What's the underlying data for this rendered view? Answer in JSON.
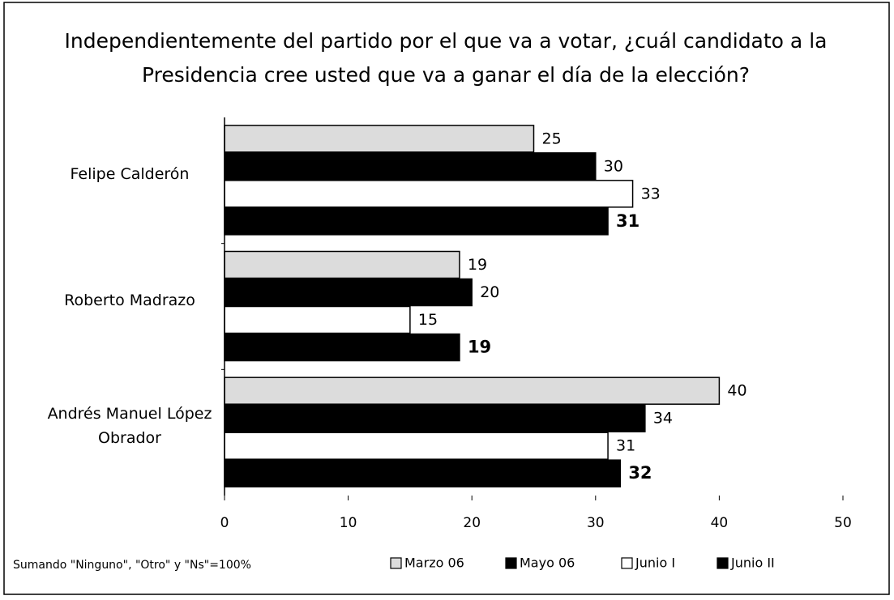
{
  "chart_data": {
    "type": "hbar",
    "title": "Independientemente del partido por el que va a votar, ¿cuál candidato a la Presidencia cree usted que va a ganar el día de la elección?",
    "note": "Sumando \"Ninguno\", \"Otro\" y \"Ns\"=100%",
    "categories": [
      "Felipe Calderón",
      "Roberto Madrazo",
      "Andrés Manuel López Obrador"
    ],
    "series": [
      {
        "name": "Marzo 06",
        "color": "#dcdcdc",
        "values": [
          25,
          19,
          40
        ]
      },
      {
        "name": "Mayo 06",
        "color": "#000000",
        "values": [
          30,
          20,
          34
        ]
      },
      {
        "name": "Junio I",
        "color": "#ffffff",
        "values": [
          33,
          15,
          31
        ]
      },
      {
        "name": "Junio II",
        "color": "#000000",
        "values": [
          31,
          19,
          32
        ],
        "label_bold": true
      }
    ],
    "xlim": [
      0,
      50
    ],
    "xticks": [
      0,
      10,
      20,
      30,
      40,
      50
    ],
    "legend": "bottom"
  }
}
